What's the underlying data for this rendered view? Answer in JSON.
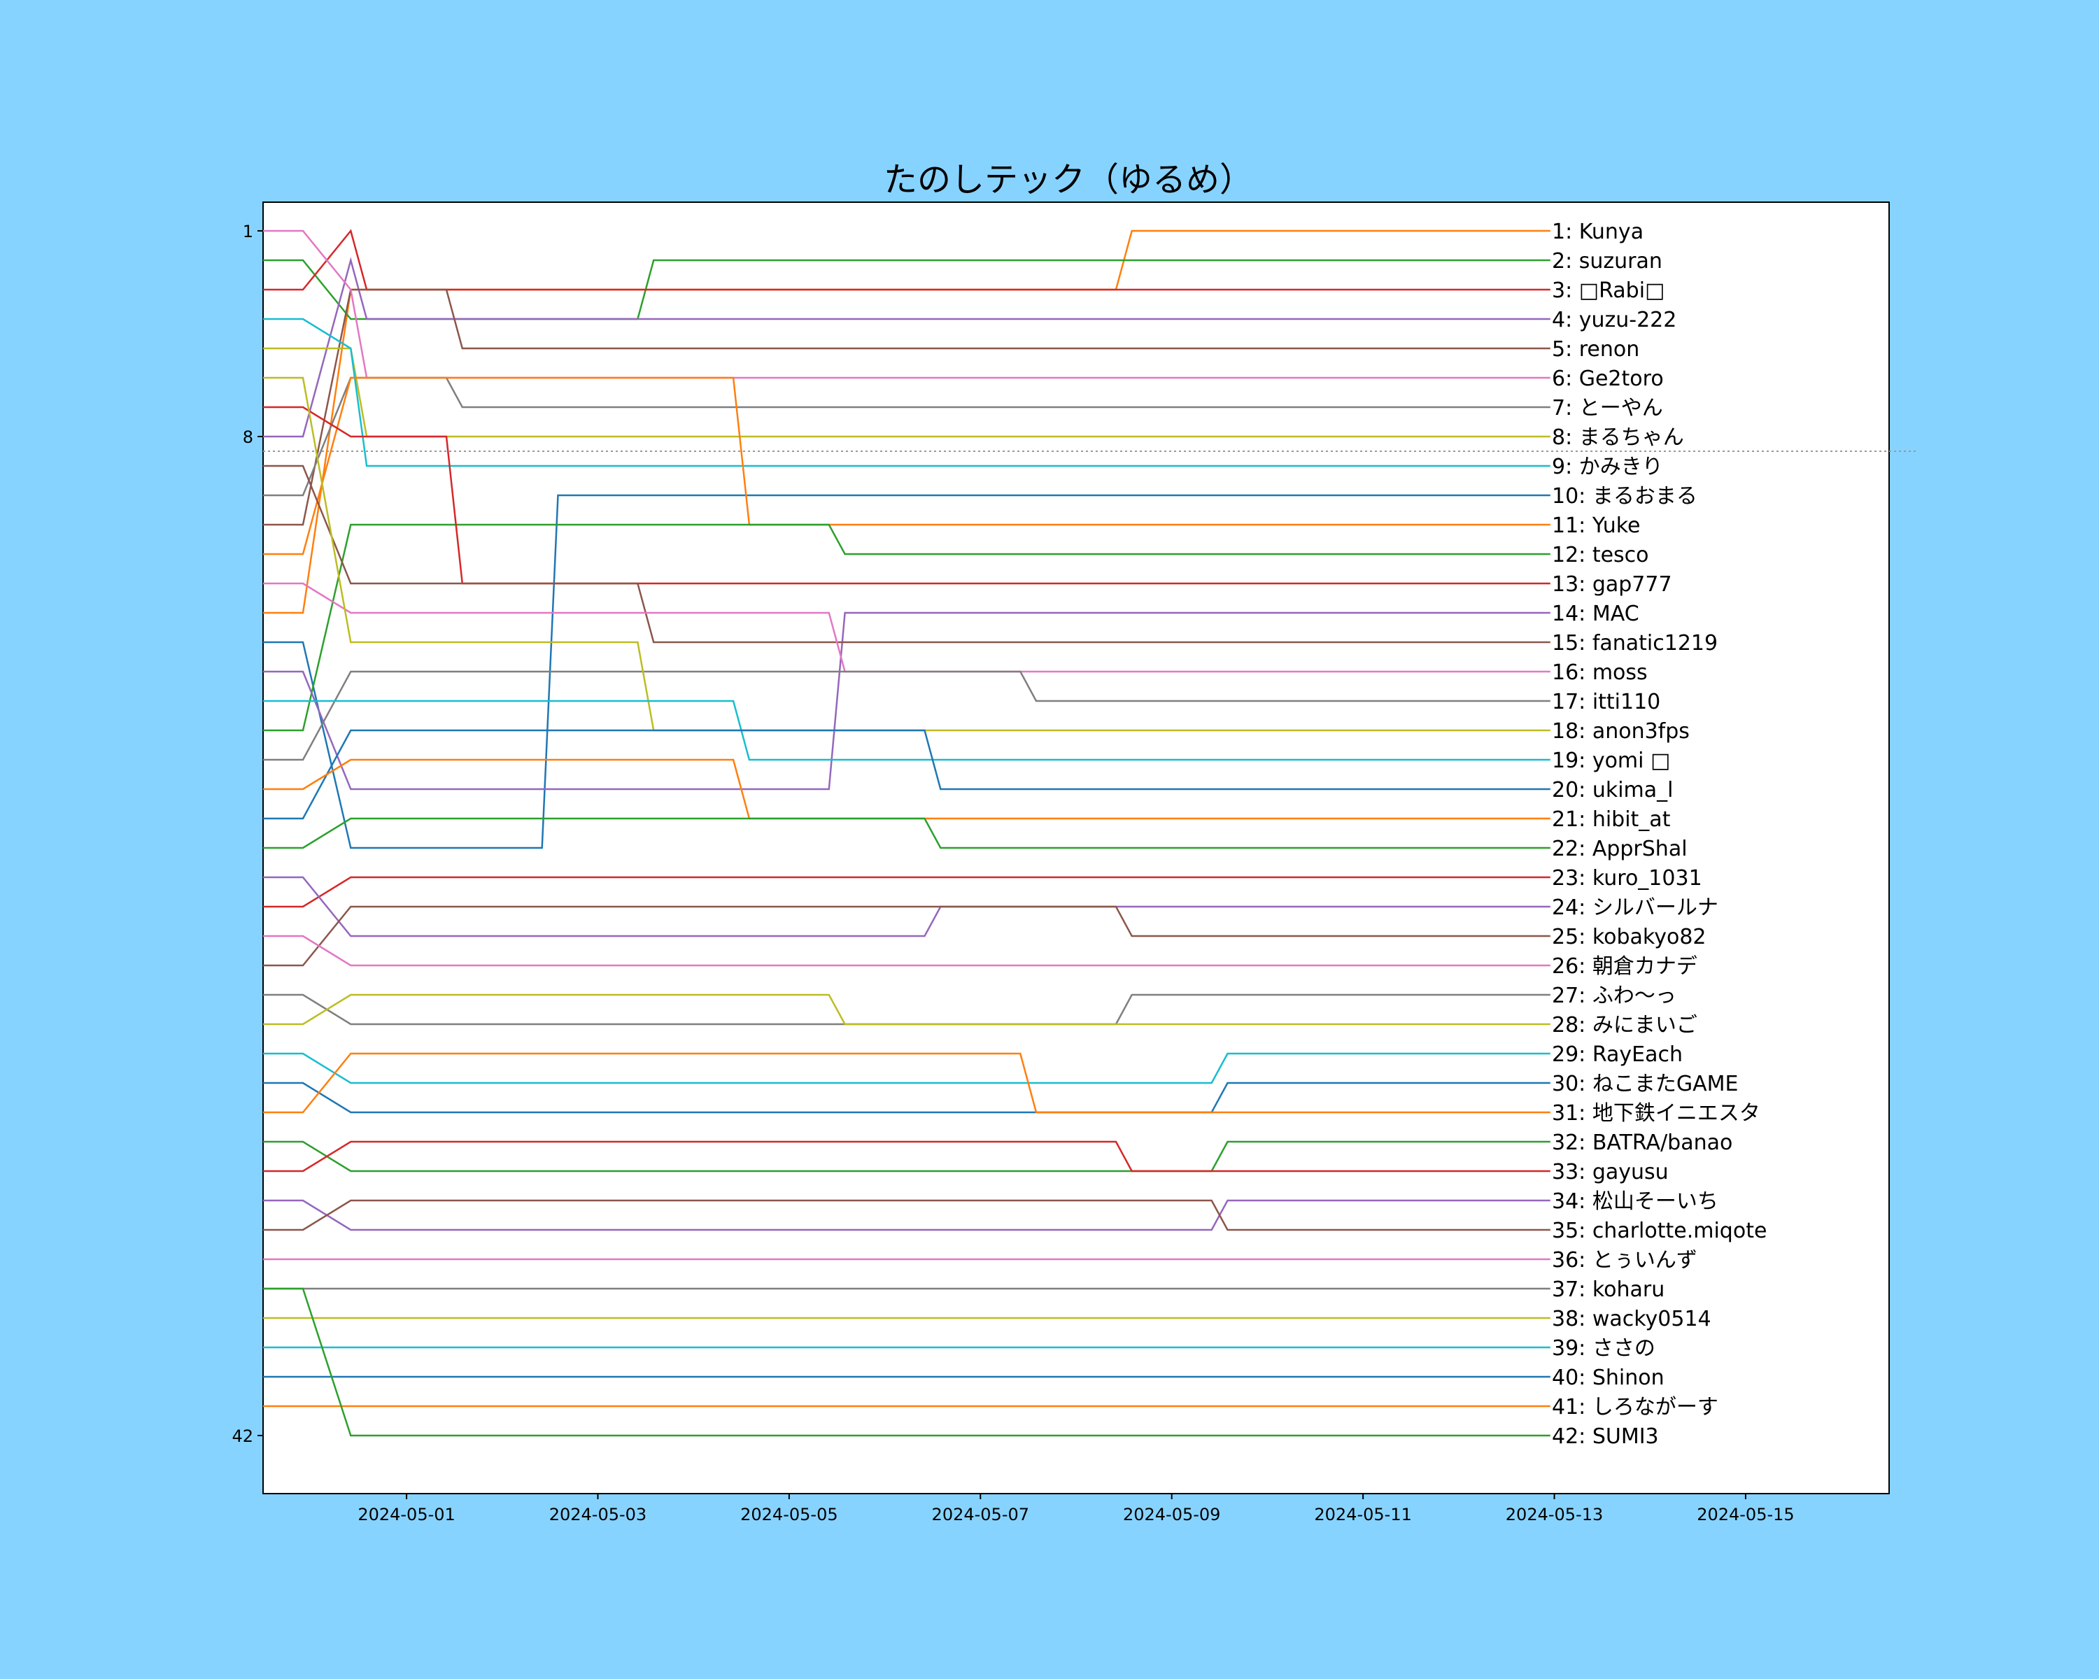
{
  "chart_data": {
    "type": "line",
    "title": "たのしテック（ゆるめ）",
    "xlabel": "",
    "ylabel": "",
    "x_tick_labels": [
      "2024-05-01",
      "2024-05-03",
      "2024-05-05",
      "2024-05-07",
      "2024-05-09",
      "2024-05-11",
      "2024-05-13",
      "2024-05-15"
    ],
    "xlim": [
      "2024-04-29 12:00",
      "2024-05-16 12:00"
    ],
    "y_ticks": [
      1,
      8,
      42
    ],
    "ylim": [
      43,
      0
    ],
    "y_inverted": true,
    "reference_line": {
      "y": 8.5,
      "style": "dotted"
    },
    "grid": false,
    "legend": "right-end labels",
    "x_start": "2024-04-29 12:00",
    "x_end": "2024-05-12 23:00",
    "series": [
      {
        "name": "Kunya",
        "final_rank": 1,
        "color": "#ff7f0e",
        "start_rank": 14,
        "mid_rank": 3,
        "switch_date": "2024-05-08 12:00"
      },
      {
        "name": "suzuran",
        "final_rank": 2,
        "color": "#2ca02c",
        "start_rank": 2,
        "mid_rank": 4,
        "switch_date": "2024-05-03 12:00"
      },
      {
        "name": "□Rabi□",
        "final_rank": 3,
        "color": "#d62728",
        "start_rank": 3,
        "mid_rank": 1,
        "switch_date": "2024-04-30 12:00"
      },
      {
        "name": "yuzu-222",
        "final_rank": 4,
        "color": "#9467bd",
        "start_rank": 8,
        "mid_rank": 2,
        "switch_date": "2024-04-30 12:00"
      },
      {
        "name": "renon",
        "final_rank": 5,
        "color": "#8c564b",
        "start_rank": 11,
        "mid_rank": 3,
        "switch_date": "2024-05-01 12:00"
      },
      {
        "name": "Ge2toro",
        "final_rank": 6,
        "color": "#e377c2",
        "start_rank": 1,
        "mid_rank": 3,
        "switch_date": "2024-04-30 12:00"
      },
      {
        "name": "とーやん",
        "final_rank": 7,
        "color": "#7f7f7f",
        "start_rank": 10,
        "mid_rank": 6,
        "switch_date": "2024-05-01 12:00"
      },
      {
        "name": "まるちゃん",
        "final_rank": 8,
        "color": "#bcbd22",
        "start_rank": 5,
        "mid_rank": 5,
        "switch_date": "2024-04-30 12:00"
      },
      {
        "name": "かみきり",
        "final_rank": 9,
        "color": "#17becf",
        "start_rank": 4,
        "mid_rank": 5,
        "switch_date": "2024-04-30 12:00"
      },
      {
        "name": "まるおまる",
        "final_rank": 10,
        "color": "#1f77b4",
        "start_rank": 15,
        "mid_rank": 22,
        "switch_date": "2024-05-02 12:00"
      },
      {
        "name": "Yuke",
        "final_rank": 11,
        "color": "#ff7f0e",
        "start_rank": 12,
        "mid_rank": 6,
        "switch_date": "2024-05-04 12:00"
      },
      {
        "name": "tesco",
        "final_rank": 12,
        "color": "#2ca02c",
        "start_rank": 18,
        "mid_rank": 11,
        "switch_date": "2024-05-05 12:00"
      },
      {
        "name": "gap777",
        "final_rank": 13,
        "color": "#d62728",
        "start_rank": 7,
        "mid_rank": 8,
        "switch_date": "2024-05-01 12:00"
      },
      {
        "name": "MAC",
        "final_rank": 14,
        "color": "#9467bd",
        "start_rank": 16,
        "mid_rank": 20,
        "switch_date": "2024-05-05 12:00"
      },
      {
        "name": "fanatic1219",
        "final_rank": 15,
        "color": "#8c564b",
        "start_rank": 9,
        "mid_rank": 13,
        "switch_date": "2024-05-03 12:00"
      },
      {
        "name": "moss",
        "final_rank": 16,
        "color": "#e377c2",
        "start_rank": 13,
        "mid_rank": 14,
        "switch_date": "2024-05-05 12:00"
      },
      {
        "name": "itti110",
        "final_rank": 17,
        "color": "#7f7f7f",
        "start_rank": 19,
        "mid_rank": 16,
        "switch_date": "2024-05-07 12:00"
      },
      {
        "name": "anon3fps",
        "final_rank": 18,
        "color": "#bcbd22",
        "start_rank": 6,
        "mid_rank": 15,
        "switch_date": "2024-05-03 12:00"
      },
      {
        "name": "yomi □",
        "final_rank": 19,
        "color": "#17becf",
        "start_rank": 17,
        "mid_rank": 17,
        "switch_date": "2024-05-04 12:00"
      },
      {
        "name": "ukima_l",
        "final_rank": 20,
        "color": "#1f77b4",
        "start_rank": 21,
        "mid_rank": 18,
        "switch_date": "2024-05-06 12:00"
      },
      {
        "name": "hibit_at",
        "final_rank": 21,
        "color": "#ff7f0e",
        "start_rank": 20,
        "mid_rank": 19,
        "switch_date": "2024-05-04 12:00"
      },
      {
        "name": "ApprShal",
        "final_rank": 22,
        "color": "#2ca02c",
        "start_rank": 22,
        "mid_rank": 21,
        "switch_date": "2024-05-06 12:00"
      },
      {
        "name": "kuro_1031",
        "final_rank": 23,
        "color": "#d62728",
        "start_rank": 24,
        "mid_rank": 23,
        "switch_date": "2024-05-09 12:00"
      },
      {
        "name": "シルバールナ",
        "final_rank": 24,
        "color": "#9467bd",
        "start_rank": 23,
        "mid_rank": 25,
        "switch_date": "2024-05-06 12:00"
      },
      {
        "name": "kobakyo82",
        "final_rank": 25,
        "color": "#8c564b",
        "start_rank": 26,
        "mid_rank": 24,
        "switch_date": "2024-05-08 12:00"
      },
      {
        "name": "朝倉カナデ",
        "final_rank": 26,
        "color": "#e377c2",
        "start_rank": 25,
        "mid_rank": 26,
        "switch_date": "2024-05-07 12:00"
      },
      {
        "name": "ふわ～っ",
        "final_rank": 27,
        "color": "#7f7f7f",
        "start_rank": 27,
        "mid_rank": 28,
        "switch_date": "2024-05-08 12:00"
      },
      {
        "name": "みにまいご",
        "final_rank": 28,
        "color": "#bcbd22",
        "start_rank": 28,
        "mid_rank": 27,
        "switch_date": "2024-05-05 12:00"
      },
      {
        "name": "RayEach",
        "final_rank": 29,
        "color": "#17becf",
        "start_rank": 29,
        "mid_rank": 30,
        "switch_date": "2024-05-09 12:00"
      },
      {
        "name": "ねこまたGAME",
        "final_rank": 30,
        "color": "#1f77b4",
        "start_rank": 30,
        "mid_rank": 31,
        "switch_date": "2024-05-09 12:00"
      },
      {
        "name": "地下鉄イニエスタ",
        "final_rank": 31,
        "color": "#ff7f0e",
        "start_rank": 31,
        "mid_rank": 29,
        "switch_date": "2024-05-07 12:00"
      },
      {
        "name": "BATRA/banao",
        "final_rank": 32,
        "color": "#2ca02c",
        "start_rank": 32,
        "mid_rank": 33,
        "switch_date": "2024-05-09 12:00"
      },
      {
        "name": "gayusu",
        "final_rank": 33,
        "color": "#d62728",
        "start_rank": 33,
        "mid_rank": 32,
        "switch_date": "2024-05-08 12:00"
      },
      {
        "name": "松山そーいち",
        "final_rank": 34,
        "color": "#9467bd",
        "start_rank": 34,
        "mid_rank": 35,
        "switch_date": "2024-05-09 12:00"
      },
      {
        "name": "charlotte.miqote",
        "final_rank": 35,
        "color": "#8c564b",
        "start_rank": 35,
        "mid_rank": 34,
        "switch_date": "2024-05-09 12:00"
      },
      {
        "name": "とぅいんず",
        "final_rank": 36,
        "color": "#e377c2",
        "start_rank": 36,
        "mid_rank": 36,
        "switch_date": "2024-05-08 12:00"
      },
      {
        "name": "koharu",
        "final_rank": 37,
        "color": "#7f7f7f",
        "start_rank": 37,
        "mid_rank": 37,
        "switch_date": "2024-05-08 12:00"
      },
      {
        "name": "wacky0514",
        "final_rank": 38,
        "color": "#bcbd22",
        "start_rank": 38,
        "mid_rank": 38,
        "switch_date": "2024-05-09 12:00"
      },
      {
        "name": "ささの",
        "final_rank": 39,
        "color": "#17becf",
        "start_rank": 39,
        "mid_rank": 39,
        "switch_date": "2024-05-09 12:00"
      },
      {
        "name": "Shinon",
        "final_rank": 40,
        "color": "#1f77b4",
        "start_rank": 40,
        "mid_rank": 40,
        "switch_date": "2024-05-10 12:00"
      },
      {
        "name": "しろながーす",
        "final_rank": 41,
        "color": "#ff7f0e",
        "start_rank": 41,
        "mid_rank": 41,
        "switch_date": "2024-05-10 12:00"
      },
      {
        "name": "SUMI3",
        "final_rank": 42,
        "color": "#2ca02c",
        "start_rank": 37,
        "mid_rank": 42,
        "switch_date": "2024-05-09 12:00"
      }
    ]
  },
  "colors": {
    "background": "#87d3ff",
    "plot_background": "#ffffff",
    "axis": "#000000",
    "reference_line": "#999999"
  }
}
